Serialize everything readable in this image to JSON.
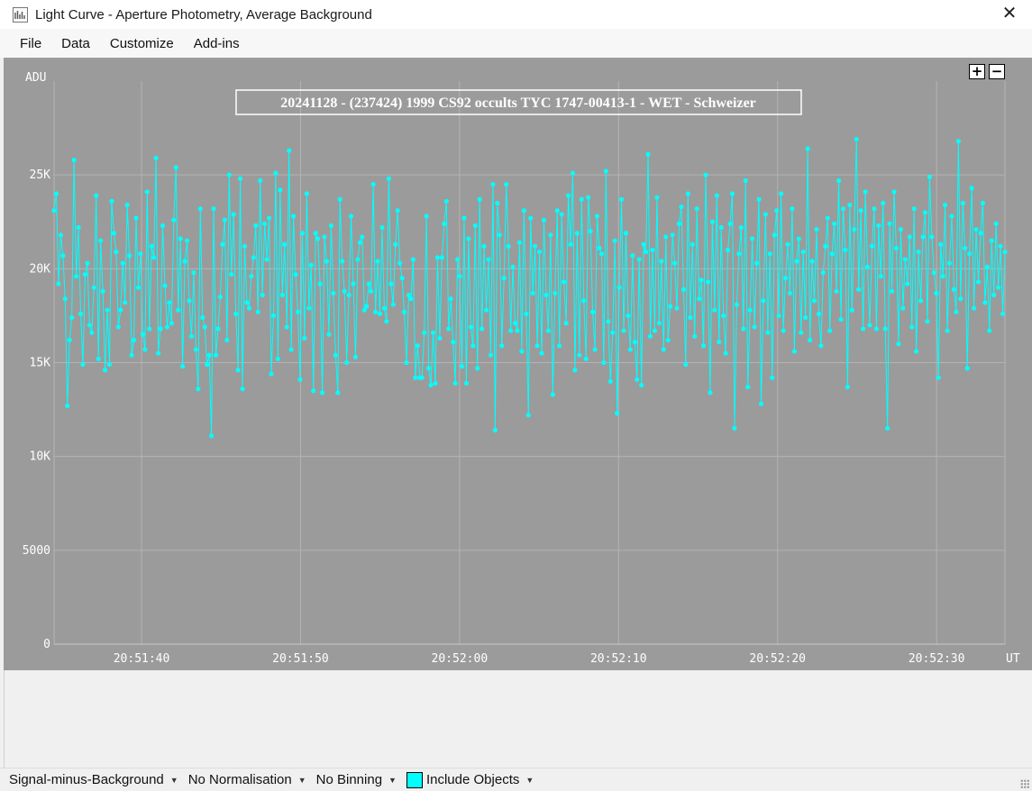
{
  "window": {
    "title": "Light Curve - Aperture Photometry, Average Background",
    "close_label": "✕"
  },
  "menu": [
    "File",
    "Data",
    "Customize",
    "Add-ins"
  ],
  "zoom": {
    "in_label": "+",
    "out_label": "−"
  },
  "statusbar": {
    "signal": "Signal-minus-Background",
    "normalisation": "No Normalisation",
    "binning": "No Binning",
    "include": "Include Objects",
    "include_color": "#00ffff"
  },
  "colors": {
    "plot_background": "#9b9b9b",
    "series": "#00ffff",
    "grid": "#b4b4b4"
  },
  "chart_data": {
    "type": "line",
    "title": "20241128 - (237424) 1999 CS92 occults TYC 1747-00413-1 - WET - Schweizer",
    "ylabel": "ADU",
    "xlabel": "UT",
    "ylim": [
      0,
      30000
    ],
    "x_range": [
      "20:51:34.5",
      "20:52:34.3"
    ],
    "yticks": [
      {
        "value": 0,
        "label": "0"
      },
      {
        "value": 5000,
        "label": "5000"
      },
      {
        "value": 10000,
        "label": "10K"
      },
      {
        "value": 15000,
        "label": "15K"
      },
      {
        "value": 20000,
        "label": "20K"
      },
      {
        "value": 25000,
        "label": "25K"
      }
    ],
    "xticks": [
      "20:51:40",
      "20:51:50",
      "20:52:00",
      "20:52:10",
      "20:52:20",
      "20:52:30"
    ],
    "grid": true,
    "marker": "circle",
    "series": [
      {
        "values": [
          23100,
          24000,
          19200,
          21800,
          20700,
          18400,
          12700,
          16200,
          17400,
          25800,
          19600,
          22200,
          17600,
          14900,
          19700,
          20300,
          17000,
          16600,
          19000,
          23900,
          15200,
          21500,
          18800,
          14600,
          17800,
          14900,
          23600,
          21900,
          20900,
          16900,
          17800,
          20300,
          18200,
          23400,
          20700,
          15400,
          16200,
          22700,
          19000,
          20800,
          16500,
          15700,
          24100,
          16800,
          21200,
          20600,
          25900,
          15500,
          16800,
          22300,
          19100,
          16900,
          18200,
          17100,
          22600,
          25400,
          17800,
          21600,
          14800,
          20400,
          21500,
          18300,
          16400,
          19800,
          15700,
          13600,
          23200,
          17400,
          16900,
          14900,
          15400,
          11100,
          23200,
          15400,
          16800,
          18500,
          21300,
          22600,
          16200,
          25000,
          19700,
          22900,
          17600,
          14600,
          24800,
          13600,
          21200,
          18200,
          17900,
          19600,
          20600,
          22300,
          17700,
          24700,
          18600,
          22400,
          20500,
          22700,
          14400,
          17500,
          25100,
          15200,
          24200,
          18600,
          21300,
          16900,
          26300,
          15700,
          22800,
          19700,
          17700,
          14100,
          21900,
          16300,
          24000,
          17900,
          20200,
          13500,
          21900,
          21600,
          19200,
          13400,
          21700,
          20400,
          16500,
          22300,
          18700,
          15400,
          13400,
          23700,
          20400,
          18800,
          15000,
          18600,
          22800,
          19200,
          15300,
          20500,
          21400,
          21700,
          17800,
          18000,
          19200,
          18800,
          24500,
          17700,
          20400,
          17600,
          22200,
          17900,
          17200,
          24800,
          19200,
          18100,
          21300,
          23100,
          20300,
          19500,
          17700,
          15000,
          18600,
          18400,
          20500,
          14200,
          15900,
          14200,
          14200,
          16600,
          22800,
          14700,
          13800,
          16600,
          13900,
          20600,
          16300,
          20600,
          22400,
          23600,
          16800,
          18400,
          16100,
          13900,
          20500,
          19600,
          14800,
          22700,
          13900,
          21600,
          16900,
          15900,
          22300,
          14700,
          23700,
          16800,
          21200,
          17800,
          20500,
          15400,
          24500,
          11400,
          23500,
          21800,
          15900,
          19500,
          24500,
          21200,
          16700,
          20100,
          17100,
          16700,
          21400,
          15600,
          23100,
          17600,
          12200,
          22700,
          18700,
          21200,
          15900,
          20900,
          15500,
          22600,
          18600,
          16700,
          21800,
          13300,
          18700,
          23100,
          15900,
          22900,
          19300,
          17100,
          23900,
          21300,
          25100,
          14600,
          21900,
          15400,
          23700,
          18300,
          15200,
          23800,
          22000,
          17700,
          15700,
          22800,
          21100,
          20800,
          15000,
          25200,
          17200,
          14000,
          16600,
          21500,
          12300,
          19000,
          23700,
          16700,
          21900,
          17500,
          15700,
          20700,
          16100,
          14100,
          20500,
          13800,
          21300,
          20900,
          26100,
          16400,
          21000,
          16700,
          23800,
          17100,
          20400,
          15700,
          21700,
          16200,
          18000,
          21800,
          20300,
          17900,
          22400,
          23300,
          18900,
          14900,
          24000,
          17400,
          21300,
          16400,
          23200,
          18400,
          19400,
          15900,
          25000,
          19300,
          13400,
          22500,
          17800,
          23900,
          16100,
          22200,
          17500,
          15500,
          21000,
          22400,
          24000,
          11500,
          18100,
          20800,
          22200,
          16800,
          24700,
          13700,
          17800,
          21600,
          16900,
          20300,
          23700,
          12800,
          18300,
          22900,
          16600,
          20800,
          14200,
          21800,
          23100,
          17500,
          24000,
          16700,
          19500,
          21300,
          18700,
          23200,
          15600,
          20400,
          21600,
          16600,
          20900,
          17400,
          26400,
          16200,
          20400,
          18300,
          22100,
          17600,
          15900,
          19800,
          21200,
          22700,
          16700,
          20800,
          22400,
          18800,
          24700,
          17300,
          23200,
          21000,
          13700,
          23400,
          17800,
          22100,
          26900,
          18900,
          23100,
          16800,
          24100,
          20100,
          17000,
          21200,
          23200,
          16800,
          22300,
          19600,
          23500,
          16800,
          11500,
          22400,
          18800,
          24100,
          21100,
          16000,
          22100,
          17900,
          20500,
          19200,
          21700,
          16900,
          23200,
          15600,
          20900,
          18300,
          21700,
          23000,
          17200,
          24900,
          21700,
          19800,
          18700,
          14200,
          21300,
          19600,
          23400,
          16700,
          20300,
          22800,
          18900,
          17700,
          26800,
          18400,
          23500,
          21100,
          14700,
          20800,
          24300,
          17900,
          22100,
          19300,
          21900,
          23500,
          18200,
          20100,
          16700,
          21500,
          18600,
          22400,
          19000,
          21200,
          17600,
          20900
        ]
      }
    ]
  }
}
